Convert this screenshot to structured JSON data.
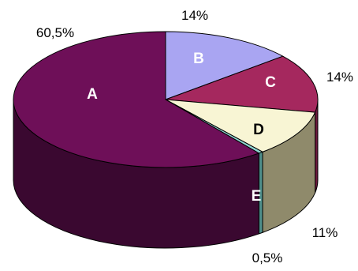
{
  "chart_data": {
    "type": "pie",
    "style": "3d",
    "legend": "none",
    "slices": [
      {
        "name": "A",
        "value": 60.5,
        "label": "60,5%",
        "top_color": "#6e0f58",
        "side_color": "#3a0830",
        "letter_color": "#ffffff"
      },
      {
        "name": "B",
        "value": 14,
        "label": "14%",
        "top_color": "#a9a5f2",
        "side_color": "#7e7ac0",
        "letter_color": "#ffffff"
      },
      {
        "name": "C",
        "value": 14,
        "label": "14%",
        "top_color": "#a5285e",
        "side_color": "#6e1a3e",
        "letter_color": "#ffffff"
      },
      {
        "name": "D",
        "value": 11,
        "label": "11%",
        "top_color": "#f8f5d4",
        "side_color": "#8f8a6b",
        "letter_color": "#000000"
      },
      {
        "name": "E",
        "value": 0.5,
        "label": "0,5%",
        "top_color": "#8fd3d0",
        "side_color": "#4e8e8a",
        "letter_color": "#ffffff"
      }
    ]
  }
}
